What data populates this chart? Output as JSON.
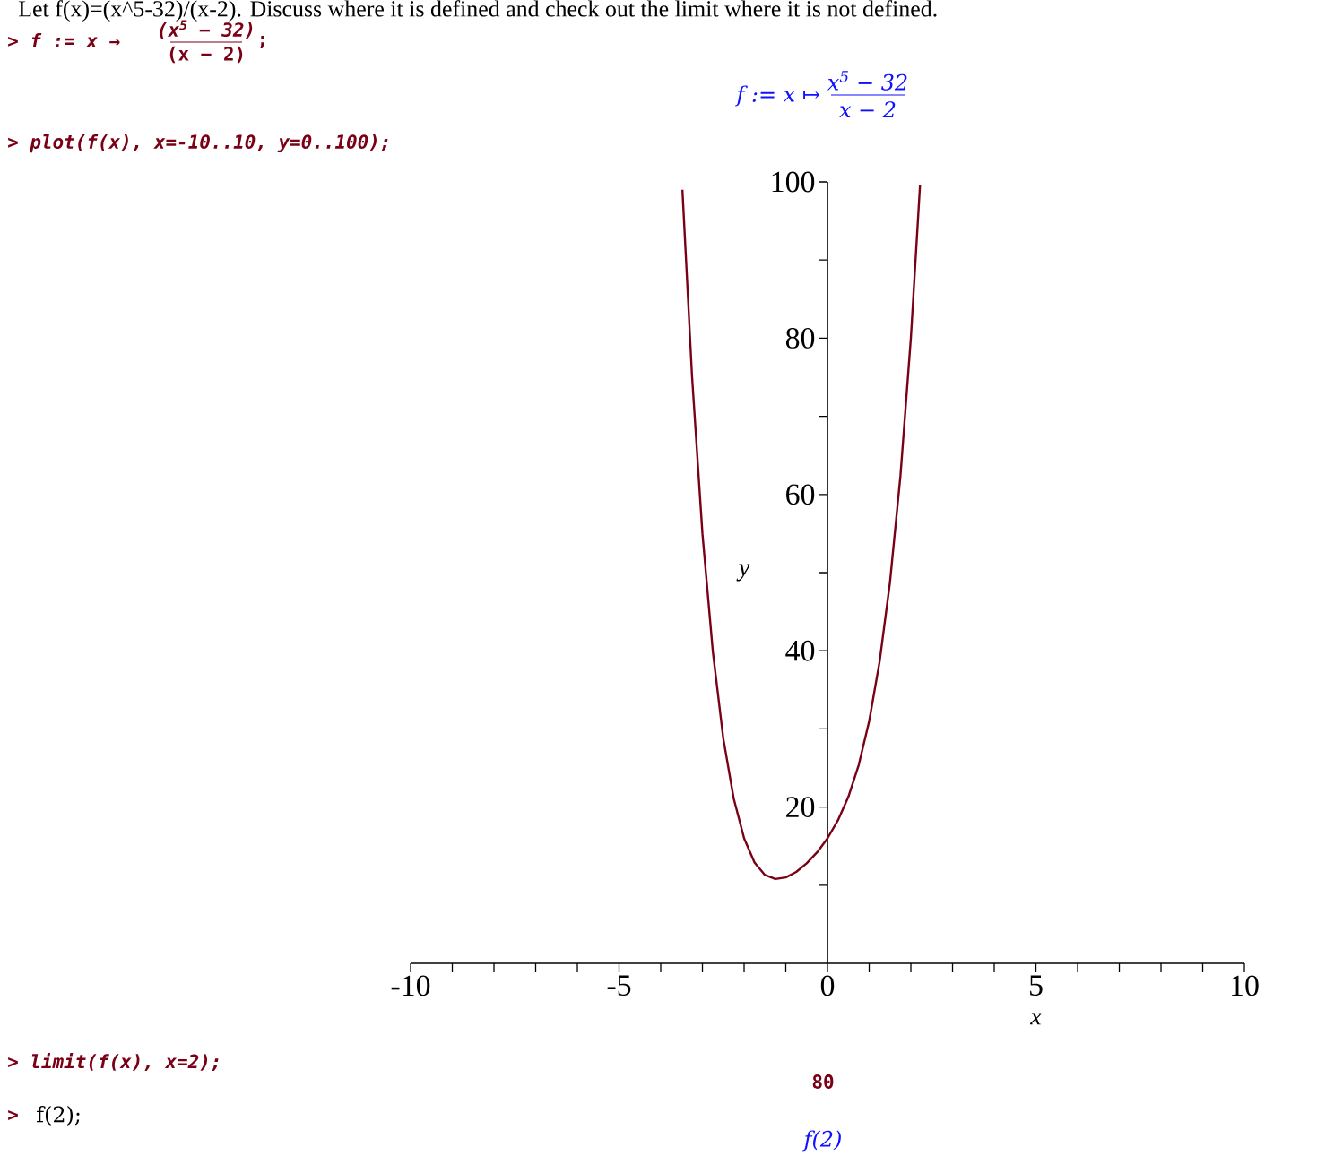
{
  "chart_data": {
    "type": "line",
    "xlabel": "x",
    "ylabel": "y",
    "x": [
      -3.48,
      -3.25,
      -3.0,
      -2.75,
      -2.5,
      -2.25,
      -2.0,
      -1.75,
      -1.5,
      -1.25,
      -1.0,
      -0.75,
      -0.5,
      -0.25,
      0.0,
      0.25,
      0.5,
      0.75,
      1.0,
      1.25,
      1.5,
      1.75,
      2.0,
      2.22
    ],
    "series": [
      {
        "color": "#7a0016",
        "values": [
          99.0,
          75.2,
          55.0,
          39.9,
          28.8,
          21.1,
          16.0,
          12.9,
          11.3,
          10.8,
          11.0,
          11.7,
          12.8,
          14.2,
          16.0,
          18.3,
          21.3,
          25.4,
          31.0,
          38.6,
          48.8,
          62.4,
          80.0,
          99.6
        ]
      }
    ],
    "xlim": [
      -10,
      10
    ],
    "ylim": [
      0,
      100
    ],
    "xticks": [
      -10,
      {
        "value": -9,
        "label": null
      },
      {
        "value": -8,
        "label": null
      },
      {
        "value": -7,
        "label": null
      },
      {
        "value": -6,
        "label": null
      },
      -5,
      {
        "value": -4,
        "label": null
      },
      {
        "value": -3,
        "label": null
      },
      {
        "value": -2,
        "label": null
      },
      {
        "value": -1,
        "label": null
      },
      0,
      {
        "value": 1,
        "label": null
      },
      {
        "value": 2,
        "label": null
      },
      {
        "value": 3,
        "label": null
      },
      {
        "value": 4,
        "label": null
      },
      5,
      {
        "value": 6,
        "label": null
      },
      {
        "value": 7,
        "label": null
      },
      {
        "value": 8,
        "label": null
      },
      {
        "value": 9,
        "label": null
      },
      10
    ],
    "yticks": [
      {
        "value": 10,
        "label": null
      },
      20,
      {
        "value": 30,
        "label": null
      },
      40,
      {
        "value": 50,
        "label": null
      },
      60,
      {
        "value": 70,
        "label": null
      },
      80,
      {
        "value": 90,
        "label": null
      },
      100
    ],
    "grid": false,
    "marker": "none",
    "line_style": "solid",
    "annotations": [
      "Let f(x)=(x^5-32)/(x-2).  Discuss where it is defined and check out the limit where it is not defined.",
      "> f := x →",
      "(x$^{5}$ − 32)",
      "(x − 2)",
      ";",
      "f := x ↦",
      "x$^{5}$ − 32",
      "x − 2",
      "> plot(f(x), x=-10..10, y=0..100);",
      "> limit(f(x), x=2);",
      "80",
      ">",
      "f(2);",
      "f(2)"
    ]
  }
}
